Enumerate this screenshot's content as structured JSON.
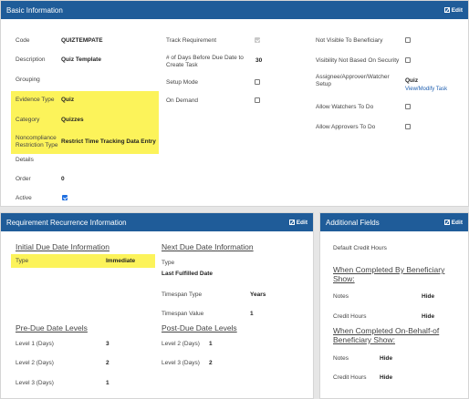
{
  "basic": {
    "title": "Basic Information",
    "edit_label": "Edit",
    "col1": {
      "code": {
        "label": "Code",
        "value": "QUIZTEMPATE"
      },
      "description": {
        "label": "Description",
        "value": "Quiz Template"
      },
      "grouping": {
        "label": "Grouping",
        "value": ""
      },
      "evidence_type": {
        "label": "Evidence Type",
        "value": "Quiz"
      },
      "category": {
        "label": "Category",
        "value": "Quizzes"
      },
      "noncompliance": {
        "label": "Noncompliance Restriction Type",
        "value": "Restrict Time Tracking Data Entry"
      },
      "details": {
        "label": "Details",
        "value": ""
      },
      "order": {
        "label": "Order",
        "value": "0"
      },
      "active": {
        "label": "Active",
        "checked": true
      }
    },
    "col2": {
      "track_requirement": {
        "label": "Track Requirement",
        "checked": true,
        "disabled": true
      },
      "days_before_due": {
        "label": "# of Days Before Due Date to Create Task",
        "value": "30"
      },
      "setup_mode": {
        "label": "Setup Mode",
        "checked": false
      },
      "on_demand": {
        "label": "On Demand",
        "checked": false
      }
    },
    "col3": {
      "not_visible": {
        "label": "Not Visible To Beneficiary",
        "checked": false
      },
      "visibility_security": {
        "label": "Visibility Not Based On Security",
        "checked": false
      },
      "assignee_setup": {
        "label": "Assignee/Approver/Watcher Setup",
        "value": "Quiz",
        "link": "View/Modify Task"
      },
      "allow_watchers": {
        "label": "Allow Watchers To Do",
        "checked": false
      },
      "allow_approvers": {
        "label": "Allow Approvers To Do",
        "checked": false
      }
    }
  },
  "recurrence": {
    "title": "Requirement Recurrence Information",
    "edit_label": "Edit",
    "initial_head": "Initial Due Date Information",
    "initial_type": {
      "label": "Type",
      "value": "Immediate"
    },
    "next_head": "Next Due Date Information",
    "next_type_label": "Type",
    "next_type_value": "Last Fulfilled Date",
    "timespan_type": {
      "label": "Timespan Type",
      "value": "Years"
    },
    "timespan_value": {
      "label": "Timespan Value",
      "value": "1"
    },
    "pre_head": "Pre-Due Date Levels",
    "pre_levels": [
      {
        "label": "Level 1 (Days)",
        "value": "3"
      },
      {
        "label": "Level 2 (Days)",
        "value": "2"
      },
      {
        "label": "Level 3 (Days)",
        "value": "1"
      }
    ],
    "post_head": "Post-Due Date Levels",
    "post_levels": [
      {
        "label": "Level 2 (Days)",
        "value": "1"
      },
      {
        "label": "Level 3 (Days)",
        "value": "2"
      }
    ]
  },
  "additional": {
    "title": "Additional Fields",
    "edit_label": "Edit",
    "default_credit_hours": "Default Credit Hours",
    "completed_by_head": "When Completed By Beneficiary Show:",
    "cb_notes": {
      "label": "Notes",
      "value": "Hide"
    },
    "cb_credit": {
      "label": "Credit Hours",
      "value": "Hide"
    },
    "completed_behalf_head": "When Completed On-Behalf-of Beneficiary Show:",
    "cob_notes": {
      "label": "Notes",
      "value": "Hide"
    },
    "cob_credit": {
      "label": "Credit Hours",
      "value": "Hide"
    }
  },
  "colors": {
    "header": "#1f5c99",
    "highlight": "#fcf35a",
    "checkbox": "#1f6fe0",
    "link": "#1f5fb0"
  }
}
